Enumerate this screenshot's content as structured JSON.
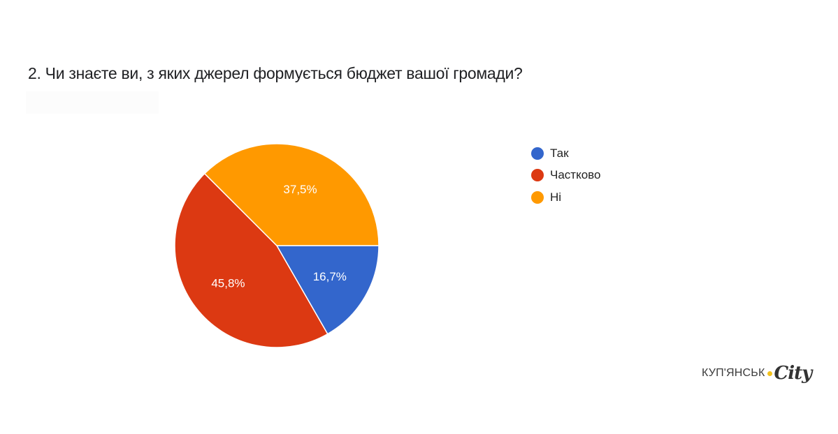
{
  "question": {
    "title": "2. Чи знаєте ви, з яких джерел формується бюджет вашої громади?"
  },
  "legend": {
    "items": [
      {
        "label": "Так",
        "color": "#3366cc"
      },
      {
        "label": "Частково",
        "color": "#dc3912"
      },
      {
        "label": "Ні",
        "color": "#ff9900"
      }
    ]
  },
  "brand": {
    "text": "КУП'ЯНСЬК",
    "script": "City",
    "dot_color": "#f3c21d"
  },
  "chart_data": {
    "type": "pie",
    "title": "2. Чи знаєте ви, з яких джерел формується бюджет вашої громади?",
    "categories": [
      "Так",
      "Частково",
      "Ні"
    ],
    "values": [
      16.7,
      45.8,
      37.5
    ],
    "labels": [
      "16,7%",
      "45,8%",
      "37,5%"
    ],
    "colors": [
      "#3366cc",
      "#dc3912",
      "#ff9900"
    ],
    "legend_position": "right",
    "start_angle": "3 o'clock, clockwise"
  }
}
